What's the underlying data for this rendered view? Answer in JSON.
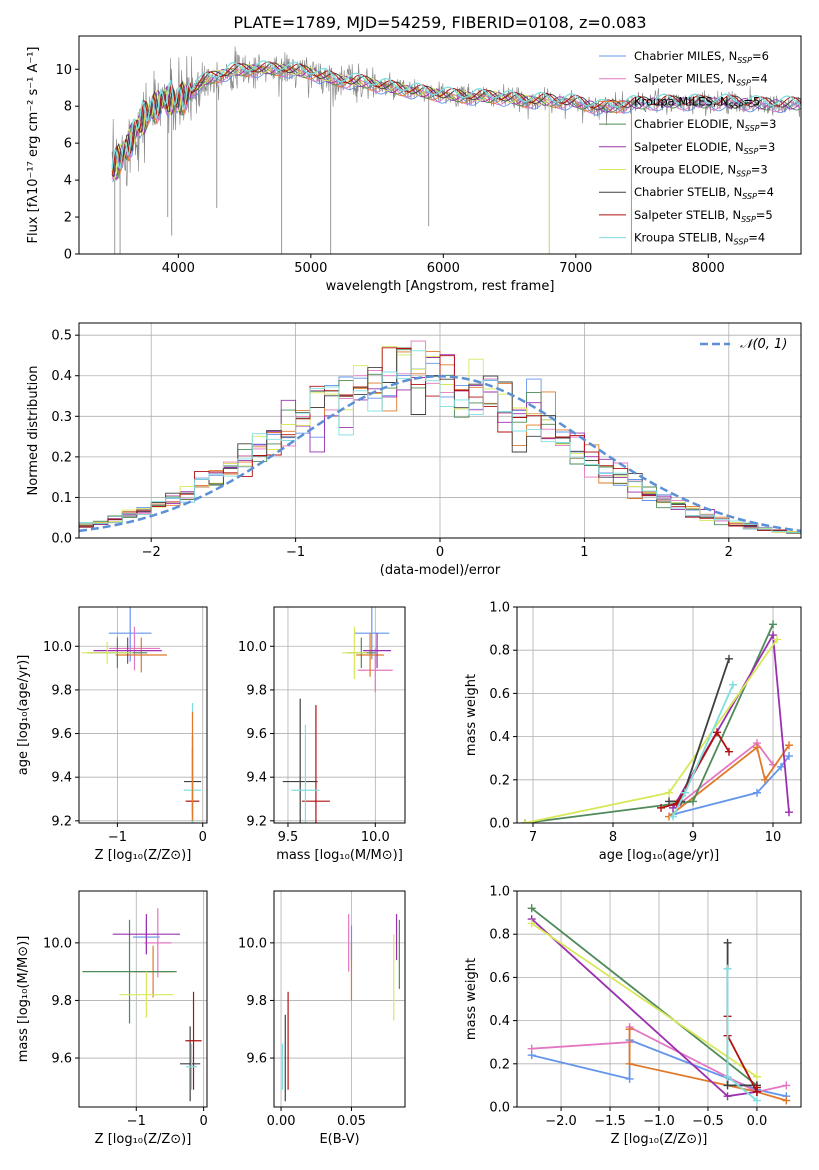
{
  "title": "PLATE=1789, MJD=54259, FIBERID=0108, z=0.083",
  "colors": {
    "Chabrier MILES": "#6495ed",
    "Salpeter MILES": "#e377c2",
    "Kroupa MILES": "#e07a2a",
    "Chabrier ELODIE": "#4f8a5a",
    "Salpeter ELODIE": "#9a30b0",
    "Kroupa ELODIE": "#d8e85a",
    "Chabrier STELIB": "#404040",
    "Salpeter STELIB": "#b01010",
    "Kroupa STELIB": "#7fdfe0",
    "data": "#808080",
    "gaussian": "#5b8fd6"
  },
  "chart_data": [
    {
      "type": "line",
      "panel": "spectrum",
      "xlabel": "wavelength [Angstrom, rest frame]",
      "ylabel": "Flux [fλ10⁻¹⁷ erg cm⁻² s⁻¹ A⁻¹]",
      "xlim": [
        3250,
        8700
      ],
      "ylim": [
        0,
        11.8
      ],
      "xticks": [
        4000,
        5000,
        6000,
        7000,
        8000
      ],
      "yticks": [
        0,
        2,
        4,
        6,
        8,
        10
      ],
      "legend_position": "right",
      "legend": [
        {
          "model": "Chabrier MILES",
          "prefix": "Chabrier MILES, N",
          "n": "6"
        },
        {
          "model": "Salpeter MILES",
          "prefix": "Salpeter MILES, N",
          "n": "4"
        },
        {
          "model": "Kroupa MILES",
          "prefix": "Kroupa MILES, N",
          "n": "5"
        },
        {
          "model": "Chabrier ELODIE",
          "prefix": "Chabrier ELODIE, N",
          "n": "3"
        },
        {
          "model": "Salpeter ELODIE",
          "prefix": "Salpeter ELODIE, N",
          "n": "3"
        },
        {
          "model": "Kroupa ELODIE",
          "prefix": "Kroupa ELODIE, N",
          "n": "3"
        },
        {
          "model": "Chabrier STELIB",
          "prefix": "Chabrier STELIB, N",
          "n": "4"
        },
        {
          "model": "Salpeter STELIB",
          "prefix": "Salpeter STELIB, N",
          "n": "5"
        },
        {
          "model": "Kroupa STELIB",
          "prefix": "Kroupa STELIB, N",
          "n": "4"
        }
      ],
      "wavelength_range": [
        3500,
        8700
      ],
      "continuum_points": [
        [
          3500,
          4.5
        ],
        [
          3600,
          5.6
        ],
        [
          3700,
          7.0
        ],
        [
          3800,
          7.8
        ],
        [
          3900,
          8.4
        ],
        [
          4000,
          8.2
        ],
        [
          4200,
          9.4
        ],
        [
          4400,
          9.9
        ],
        [
          4600,
          10.0
        ],
        [
          4800,
          10.0
        ],
        [
          5000,
          9.8
        ],
        [
          5200,
          9.4
        ],
        [
          5400,
          9.3
        ],
        [
          5600,
          9.0
        ],
        [
          5800,
          8.8
        ],
        [
          6000,
          8.6
        ],
        [
          6200,
          8.5
        ],
        [
          6400,
          8.5
        ],
        [
          6600,
          8.3
        ],
        [
          6800,
          8.3
        ],
        [
          7000,
          8.2
        ],
        [
          7200,
          7.9
        ],
        [
          7400,
          8.1
        ],
        [
          7600,
          8.2
        ],
        [
          7800,
          8.2
        ],
        [
          8000,
          8.2
        ],
        [
          8200,
          8.2
        ],
        [
          8400,
          8.1
        ],
        [
          8700,
          8.1
        ]
      ],
      "model_drops": {
        "Kroupa MILES": 7420,
        "Kroupa ELODIE": 6800
      }
    },
    {
      "type": "histogram",
      "panel": "residuals",
      "xlabel": "(data-model)/error",
      "ylabel": "Normed distribution",
      "xlim": [
        -2.5,
        2.5
      ],
      "ylim": [
        0,
        0.53
      ],
      "xticks": [
        -2,
        -1,
        0,
        1,
        2
      ],
      "yticks": [
        0.0,
        0.1,
        0.2,
        0.3,
        0.4,
        0.5
      ],
      "bin_width": 0.1,
      "legend_label": "𝒩(0, 1)",
      "legend_position": "top-right",
      "gaussian": {
        "mu": 0,
        "sigma": 1,
        "scale": 1.0
      }
    },
    {
      "type": "scatter",
      "panel": "age-vs-Z",
      "xlabel": "Z [log₁₀(Z/Z⊙)]",
      "ylabel": "age  [log₁₀(age/yr)]",
      "xlim": [
        -1.45,
        0.05
      ],
      "ylim": [
        9.19,
        10.18
      ],
      "xticks": [
        -1,
        0
      ],
      "yticks": [
        9.2,
        9.4,
        9.6,
        9.8,
        10.0
      ],
      "points": [
        {
          "model": "Chabrier MILES",
          "x": -0.85,
          "y": 10.06,
          "xerr": 0.25,
          "yerr": 0.13
        },
        {
          "model": "Salpeter MILES",
          "x": -0.8,
          "y": 9.99,
          "xerr": 0.3,
          "yerr": 0.1
        },
        {
          "model": "Kroupa MILES",
          "x": -0.72,
          "y": 9.96,
          "xerr": 0.3,
          "yerr": 0.08
        },
        {
          "model": "Chabrier ELODIE",
          "x": -1.0,
          "y": 9.97,
          "xerr": 0.35,
          "yerr": 0.07
        },
        {
          "model": "Salpeter ELODIE",
          "x": -0.88,
          "y": 9.98,
          "xerr": 0.4,
          "yerr": 0.06
        },
        {
          "model": "Kroupa ELODIE",
          "x": -1.12,
          "y": 9.97,
          "xerr": 0.3,
          "yerr": 0.05
        },
        {
          "model": "Chabrier STELIB",
          "x": -0.12,
          "y": 9.38,
          "xerr": 0.1,
          "yerr": 0.15
        },
        {
          "model": "Salpeter STELIB",
          "x": -0.12,
          "y": 9.29,
          "xerr": 0.08,
          "yerr": 0.3
        },
        {
          "model": "Kroupa STELIB",
          "x": -0.12,
          "y": 9.34,
          "xerr": 0.1,
          "yerr": 0.4
        },
        {
          "model": "Kroupa MILES",
          "x": -0.12,
          "y": 9.45,
          "xerr": 0.0,
          "yerr": 0.25
        }
      ]
    },
    {
      "type": "scatter",
      "panel": "age-vs-mass",
      "xlabel": "mass [log₁₀(M/M⊙)]",
      "xlim": [
        9.42,
        10.17
      ],
      "ylim": [
        9.19,
        10.18
      ],
      "xticks": [
        9.5,
        10.0
      ],
      "yticks": [
        9.2,
        9.4,
        9.6,
        9.8,
        10.0
      ],
      "points": [
        {
          "model": "Chabrier MILES",
          "x": 9.98,
          "y": 10.06,
          "xerr": 0.1,
          "yerr": 0.12
        },
        {
          "model": "Salpeter MILES",
          "x": 10.0,
          "y": 9.89,
          "xerr": 0.1,
          "yerr": 0.1
        },
        {
          "model": "Kroupa MILES",
          "x": 9.97,
          "y": 9.96,
          "xerr": 0.08,
          "yerr": 0.1
        },
        {
          "model": "Chabrier ELODIE",
          "x": 9.92,
          "y": 9.97,
          "xerr": 0.08,
          "yerr": 0.07
        },
        {
          "model": "Salpeter ELODIE",
          "x": 10.01,
          "y": 9.98,
          "xerr": 0.08,
          "yerr": 0.08
        },
        {
          "model": "Kroupa ELODIE",
          "x": 9.88,
          "y": 9.97,
          "xerr": 0.07,
          "yerr": 0.12
        },
        {
          "model": "Chabrier STELIB",
          "x": 9.57,
          "y": 9.38,
          "xerr": 0.1,
          "yerr": 0.38
        },
        {
          "model": "Salpeter STELIB",
          "x": 9.66,
          "y": 9.29,
          "xerr": 0.08,
          "yerr": 0.44
        },
        {
          "model": "Kroupa STELIB",
          "x": 9.6,
          "y": 9.34,
          "xerr": 0.08,
          "yerr": 0.3
        }
      ]
    },
    {
      "type": "line",
      "panel": "weight-vs-age",
      "xlabel": "age  [log₁₀(age/yr)]",
      "ylabel": "mass weight",
      "xlim": [
        6.8,
        10.35
      ],
      "ylim": [
        0,
        1.0
      ],
      "xticks": [
        7,
        8,
        9,
        10
      ],
      "yticks": [
        0.0,
        0.2,
        0.4,
        0.6,
        0.8,
        1.0
      ],
      "series": [
        {
          "model": "Chabrier MILES",
          "x": [
            8.75,
            9.8,
            10.1,
            10.2
          ],
          "y": [
            0.04,
            0.14,
            0.26,
            0.31
          ]
        },
        {
          "model": "Salpeter MILES",
          "x": [
            8.8,
            9.8,
            10.0
          ],
          "y": [
            0.08,
            0.37,
            0.27
          ]
        },
        {
          "model": "Kroupa MILES",
          "x": [
            8.7,
            9.8,
            9.9,
            10.2
          ],
          "y": [
            0.03,
            0.35,
            0.2,
            0.36
          ]
        },
        {
          "model": "Chabrier ELODIE",
          "x": [
            6.9,
            9.0,
            10.0
          ],
          "y": [
            0.0,
            0.1,
            0.92
          ]
        },
        {
          "model": "Salpeter ELODIE",
          "x": [
            8.75,
            10.0,
            10.2
          ],
          "y": [
            0.07,
            0.87,
            0.05
          ]
        },
        {
          "model": "Kroupa ELODIE",
          "x": [
            6.9,
            8.7,
            10.05
          ],
          "y": [
            0.0,
            0.14,
            0.85
          ]
        },
        {
          "model": "Chabrier STELIB",
          "x": [
            8.7,
            8.85,
            9.45
          ],
          "y": [
            0.1,
            0.1,
            0.76
          ]
        },
        {
          "model": "Salpeter STELIB",
          "x": [
            8.6,
            8.8,
            9.3,
            9.45
          ],
          "y": [
            0.07,
            0.09,
            0.42,
            0.33
          ]
        },
        {
          "model": "Kroupa STELIB",
          "x": [
            8.75,
            8.9,
            9.5
          ],
          "y": [
            0.03,
            0.14,
            0.64
          ]
        }
      ]
    },
    {
      "type": "scatter",
      "panel": "mass-vs-Z",
      "xlabel": "Z [log₁₀(Z/Z⊙)]",
      "ylabel": "mass [log₁₀(M/M⊙)]",
      "xlim": [
        -1.85,
        0.05
      ],
      "ylim": [
        9.43,
        10.18
      ],
      "xticks": [
        -1,
        0
      ],
      "yticks": [
        9.6,
        9.8,
        10.0
      ],
      "points": [
        {
          "model": "Chabrier MILES",
          "x": -0.85,
          "y": 10.02,
          "xerr": 0.2,
          "yerr": 0.06
        },
        {
          "model": "Salpeter MILES",
          "x": -0.68,
          "y": 10.0,
          "xerr": 0.2,
          "yerr": 0.12
        },
        {
          "model": "Kroupa MILES",
          "x": -0.75,
          "y": 9.9,
          "xerr": 0.3,
          "yerr": 0.09
        },
        {
          "model": "Chabrier ELODIE",
          "x": -1.1,
          "y": 9.9,
          "xerr": 0.7,
          "yerr": 0.18
        },
        {
          "model": "Salpeter ELODIE",
          "x": -0.85,
          "y": 10.03,
          "xerr": 0.5,
          "yerr": 0.07
        },
        {
          "model": "Kroupa ELODIE",
          "x": -0.85,
          "y": 9.82,
          "xerr": 0.4,
          "yerr": 0.08
        },
        {
          "model": "Chabrier STELIB",
          "x": -0.2,
          "y": 9.58,
          "xerr": 0.15,
          "yerr": 0.13
        },
        {
          "model": "Salpeter STELIB",
          "x": -0.15,
          "y": 9.66,
          "xerr": 0.12,
          "yerr": 0.17
        },
        {
          "model": "Kroupa STELIB",
          "x": -0.18,
          "y": 9.57,
          "xerr": 0.08,
          "yerr": 0.08
        }
      ]
    },
    {
      "type": "scatter",
      "panel": "mass-vs-EBV",
      "xlabel": "E(B-V)",
      "xlim": [
        -0.005,
        0.088
      ],
      "ylim": [
        9.43,
        10.18
      ],
      "xticks": [
        0.0,
        0.05
      ],
      "yticks": [
        9.6,
        9.8,
        10.0
      ],
      "points": [
        {
          "model": "Chabrier MILES",
          "x": 0.05,
          "y": 10.0,
          "xerr": 0,
          "yerr": 0.06
        },
        {
          "model": "Salpeter MILES",
          "x": 0.048,
          "y": 10.0,
          "xerr": 0,
          "yerr": 0.1
        },
        {
          "model": "Kroupa MILES",
          "x": 0.05,
          "y": 9.9,
          "xerr": 0,
          "yerr": 0.1
        },
        {
          "model": "Chabrier ELODIE",
          "x": 0.084,
          "y": 9.96,
          "xerr": 0,
          "yerr": 0.12
        },
        {
          "model": "Salpeter ELODIE",
          "x": 0.082,
          "y": 10.02,
          "xerr": 0,
          "yerr": 0.08
        },
        {
          "model": "Kroupa ELODIE",
          "x": 0.08,
          "y": 9.88,
          "xerr": 0,
          "yerr": 0.15
        },
        {
          "model": "Chabrier STELIB",
          "x": 0.003,
          "y": 9.6,
          "xerr": 0,
          "yerr": 0.15
        },
        {
          "model": "Salpeter STELIB",
          "x": 0.005,
          "y": 9.66,
          "xerr": 0,
          "yerr": 0.17
        },
        {
          "model": "Kroupa STELIB",
          "x": 0.001,
          "y": 9.57,
          "xerr": 0,
          "yerr": 0.08
        }
      ]
    },
    {
      "type": "line",
      "panel": "weight-vs-Z",
      "xlabel": "Z [log₁₀(Z/Z⊙)]",
      "ylabel": "mass weight",
      "xlim": [
        -2.45,
        0.45
      ],
      "ylim": [
        0,
        1.0
      ],
      "xticks": [
        -2.0,
        -1.5,
        -1.0,
        -0.5,
        0.0
      ],
      "yticks": [
        0.0,
        0.2,
        0.4,
        0.6,
        0.8,
        1.0
      ],
      "series": [
        {
          "model": "Chabrier MILES",
          "x": [
            -2.3,
            -1.3,
            -1.3,
            0.0,
            0.3
          ],
          "y": [
            0.24,
            0.13,
            0.31,
            0.08,
            0.05
          ]
        },
        {
          "model": "Salpeter MILES",
          "x": [
            -2.3,
            -1.3,
            -1.3,
            0.0,
            0.3
          ],
          "y": [
            0.27,
            0.3,
            0.37,
            0.07,
            0.1
          ]
        },
        {
          "model": "Kroupa MILES",
          "x": [
            -1.3,
            -1.3,
            0.0,
            0.3
          ],
          "y": [
            0.36,
            0.2,
            0.07,
            0.03
          ]
        },
        {
          "model": "Chabrier ELODIE",
          "x": [
            -2.3,
            0.0
          ],
          "y": [
            0.92,
            0.1
          ]
        },
        {
          "model": "Salpeter ELODIE",
          "x": [
            -2.3,
            -0.3,
            0.0
          ],
          "y": [
            0.87,
            0.05,
            0.07
          ]
        },
        {
          "model": "Kroupa ELODIE",
          "x": [
            -2.3,
            0.0
          ],
          "y": [
            0.85,
            0.14
          ]
        },
        {
          "model": "Chabrier STELIB",
          "x": [
            -0.3,
            -0.3,
            0.0
          ],
          "y": [
            0.76,
            0.1,
            0.1
          ]
        },
        {
          "model": "Salpeter STELIB",
          "x": [
            -0.3,
            -0.3,
            0.0,
            0.0
          ],
          "y": [
            0.42,
            0.33,
            0.07,
            0.09
          ]
        },
        {
          "model": "Kroupa STELIB",
          "x": [
            -0.3,
            -0.3,
            0.0
          ],
          "y": [
            0.64,
            0.14,
            0.03
          ]
        }
      ]
    }
  ]
}
